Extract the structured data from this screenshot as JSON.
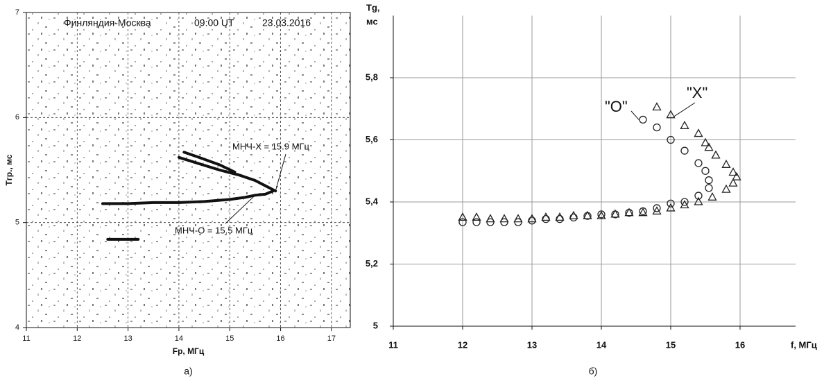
{
  "chart_data": [
    {
      "type": "ionogram",
      "title_parts": [
        "Финляндия-Москва",
        "09:00 UT",
        "23.03.2016"
      ],
      "xlabel": "Fр, МГц",
      "ylabel": "Tгр., мс",
      "panel_label": "а)",
      "xlim": [
        11,
        17.37
      ],
      "xticks": [
        11,
        12,
        13,
        14,
        15,
        16,
        17
      ],
      "ylim": [
        4,
        7
      ],
      "yticks": [
        4,
        5,
        6,
        7
      ],
      "grid": true,
      "annotations": [
        "МНЧ-Х = 15.9 МГц",
        "МНЧ-О = 15.5 МГц"
      ],
      "series": [
        {
          "color": "#111111",
          "x": [
            12.5,
            13,
            13.5,
            14,
            14.5,
            15,
            15.3,
            15.5,
            15.7,
            15.85
          ],
          "y": [
            5.18,
            5.18,
            5.19,
            5.19,
            5.2,
            5.22,
            5.24,
            5.26,
            5.27,
            5.3
          ]
        },
        {
          "color": "#111111",
          "x": [
            15.9,
            15.7,
            15.5,
            15.2,
            14.8,
            14.4,
            14.0
          ],
          "y": [
            5.3,
            5.35,
            5.4,
            5.45,
            5.5,
            5.56,
            5.62
          ]
        },
        {
          "color": "#111111",
          "x": [
            14.1,
            14.4,
            14.8,
            15.1
          ],
          "y": [
            5.67,
            5.62,
            5.55,
            5.48
          ]
        },
        {
          "color": "#111111",
          "x": [
            12.6,
            13.2
          ],
          "y": [
            4.84,
            4.84
          ]
        }
      ]
    },
    {
      "type": "scatter",
      "xlabel": "f, МГц",
      "ylabel_lines": [
        "Tg,",
        "мс"
      ],
      "panel_label": "б)",
      "xlim": [
        11,
        16.8
      ],
      "xticks": [
        11,
        12,
        13,
        14,
        15,
        16
      ],
      "ylim": [
        5,
        6
      ],
      "yticks": [
        5,
        {
          "value": 5.2,
          "label": "5,2"
        },
        {
          "value": 5.4,
          "label": "5,4"
        },
        {
          "value": 5.6,
          "label": "5,6"
        },
        {
          "value": 5.8,
          "label": "5,8"
        }
      ],
      "grid": true,
      "annotations": [
        "\"О\"",
        "\"Х\""
      ],
      "series": [
        {
          "marker": "circle",
          "color": "#222222",
          "x": [
            12,
            12.2,
            12.4,
            12.6,
            12.8,
            13,
            13.2,
            13.4,
            13.6,
            13.8,
            14,
            14.2,
            14.4,
            14.6,
            14.8,
            15,
            15.2,
            15.4,
            15.55,
            15.55,
            15.5,
            15.4,
            15.2,
            15,
            14.8,
            14.6
          ],
          "y": [
            5.335,
            5.335,
            5.335,
            5.335,
            5.335,
            5.34,
            5.345,
            5.345,
            5.35,
            5.355,
            5.36,
            5.36,
            5.365,
            5.37,
            5.38,
            5.395,
            5.4,
            5.42,
            5.445,
            5.47,
            5.5,
            5.525,
            5.565,
            5.6,
            5.64,
            5.665
          ]
        },
        {
          "marker": "triangle",
          "color": "#222222",
          "x": [
            12,
            12.2,
            12.4,
            12.6,
            12.8,
            13,
            13.2,
            13.4,
            13.6,
            13.8,
            14,
            14.2,
            14.4,
            14.6,
            14.8,
            15,
            15.2,
            15.4,
            15.6,
            15.8,
            15.9,
            15.95,
            15.9,
            15.8,
            15.65,
            15.55,
            15.5,
            15.4,
            15.2,
            15,
            14.8
          ],
          "y": [
            5.35,
            5.35,
            5.345,
            5.345,
            5.345,
            5.345,
            5.35,
            5.35,
            5.355,
            5.355,
            5.355,
            5.36,
            5.365,
            5.365,
            5.37,
            5.38,
            5.39,
            5.4,
            5.415,
            5.44,
            5.46,
            5.48,
            5.495,
            5.52,
            5.55,
            5.575,
            5.59,
            5.62,
            5.645,
            5.68,
            5.705
          ]
        }
      ]
    }
  ]
}
